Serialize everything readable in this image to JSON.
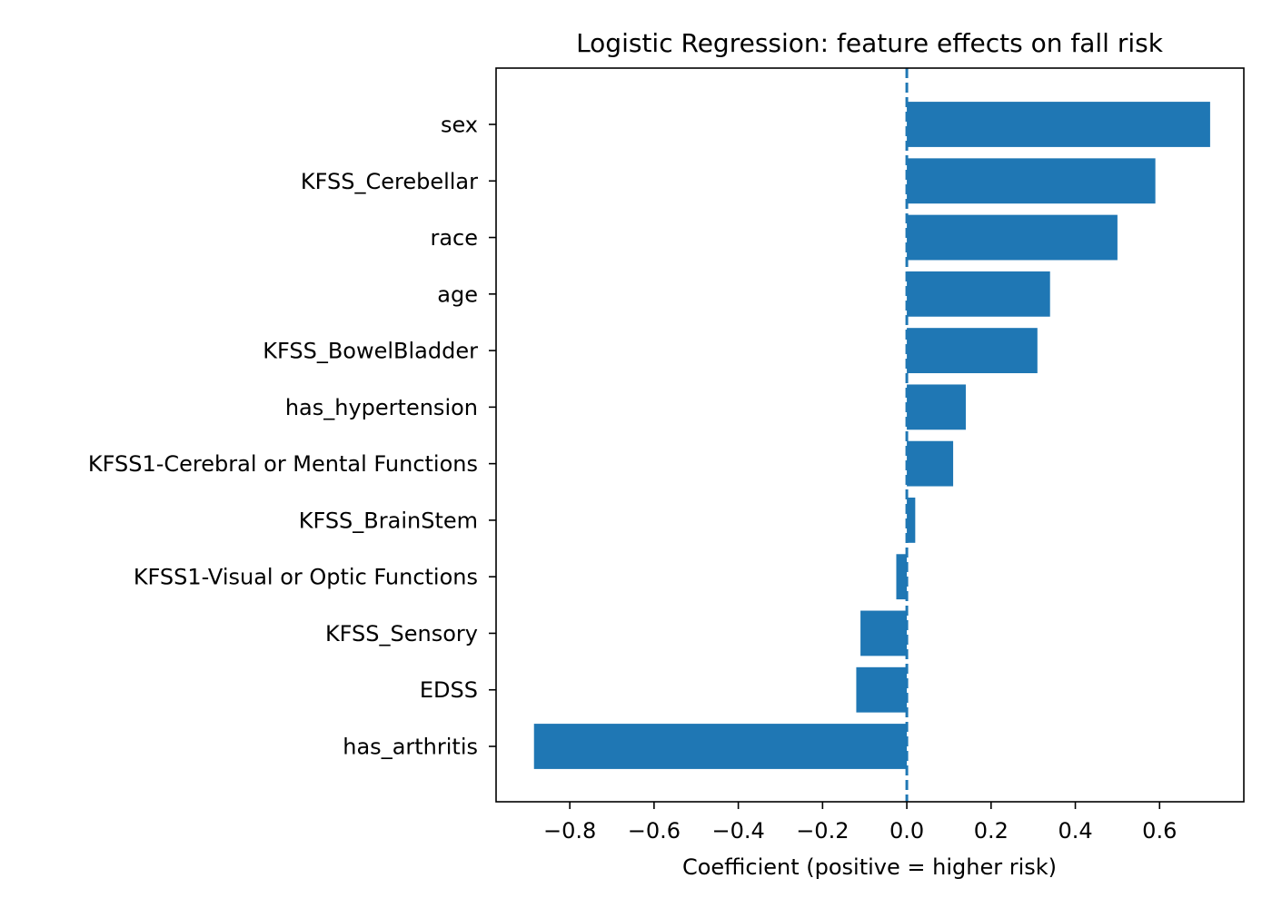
{
  "chart_data": {
    "type": "bar",
    "orientation": "horizontal",
    "title": "Logistic Regression: feature effects on fall risk",
    "xlabel": "Coefficient (positive = higher risk)",
    "ylabel": "",
    "categories": [
      "sex",
      "KFSS_Cerebellar",
      "race",
      "age",
      "KFSS_BowelBladder",
      "has_hypertension",
      "KFSS1-Cerebral or Mental Functions",
      "KFSS_BrainStem",
      "KFSS1-Visual or Optic Functions",
      "KFSS_Sensory",
      "EDSS",
      "has_arthritis"
    ],
    "values": [
      0.72,
      0.59,
      0.5,
      0.34,
      0.31,
      0.14,
      0.11,
      0.02,
      -0.025,
      -0.11,
      -0.12,
      -0.885
    ],
    "xlim": [
      -0.975,
      0.8
    ],
    "xticks": [
      -0.8,
      -0.6,
      -0.4,
      -0.2,
      0.0,
      0.2,
      0.4,
      0.6
    ],
    "xtick_labels": [
      "−0.8",
      "−0.6",
      "−0.4",
      "−0.2",
      "0.0",
      "0.2",
      "0.4",
      "0.6"
    ],
    "reference_line": {
      "x": 0,
      "style": "dashed"
    },
    "bar_color": "#1f77b4",
    "grid": false,
    "legend": "none"
  }
}
